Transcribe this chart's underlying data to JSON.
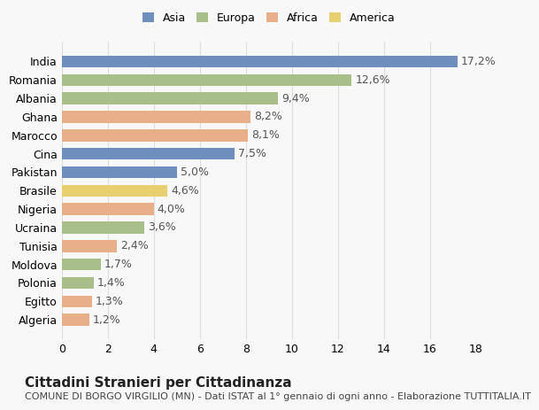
{
  "countries": [
    "India",
    "Romania",
    "Albania",
    "Ghana",
    "Marocco",
    "Cina",
    "Pakistan",
    "Brasile",
    "Nigeria",
    "Ucraina",
    "Tunisia",
    "Moldova",
    "Polonia",
    "Egitto",
    "Algeria"
  ],
  "values": [
    17.2,
    12.6,
    9.4,
    8.2,
    8.1,
    7.5,
    5.0,
    4.6,
    4.0,
    3.6,
    2.4,
    1.7,
    1.4,
    1.3,
    1.2
  ],
  "continents": [
    "Asia",
    "Europa",
    "Europa",
    "Africa",
    "Africa",
    "Asia",
    "Asia",
    "America",
    "Africa",
    "Europa",
    "Africa",
    "Europa",
    "Europa",
    "Africa",
    "Africa"
  ],
  "colors": {
    "Asia": "#6e8fbe",
    "Europa": "#a8bf8a",
    "Africa": "#e8b08a",
    "America": "#e8d070"
  },
  "legend_order": [
    "Asia",
    "Europa",
    "Africa",
    "America"
  ],
  "xlim": [
    0,
    18
  ],
  "xticks": [
    0,
    2,
    4,
    6,
    8,
    10,
    12,
    14,
    16,
    18
  ],
  "title": "Cittadini Stranieri per Cittadinanza",
  "subtitle": "COMUNE DI BORGO VIRGILIO (MN) - Dati ISTAT al 1° gennaio di ogni anno - Elaborazione TUTTITALIA.IT",
  "background_color": "#f8f8f8",
  "grid_color": "#dddddd",
  "label_fontsize": 9,
  "tick_fontsize": 9,
  "title_fontsize": 11,
  "subtitle_fontsize": 8
}
